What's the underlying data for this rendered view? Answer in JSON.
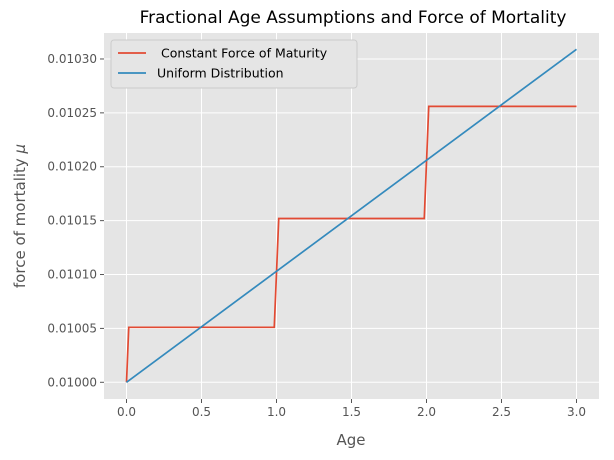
{
  "chart_data": {
    "type": "line",
    "title": "Fractional Age Assumptions and Force of Mortality",
    "xlabel": "Age",
    "ylabel_prefix": "force of mortality ",
    "ylabel_symbol": "μ",
    "xlim": [
      -0.15,
      3.15
    ],
    "ylim": [
      0.0099845,
      0.0103241
    ],
    "xticks": [
      0.0,
      0.5,
      1.0,
      1.5,
      2.0,
      2.5,
      3.0
    ],
    "xtick_labels": [
      "0.0",
      "0.5",
      "1.0",
      "1.5",
      "2.0",
      "2.5",
      "3.0"
    ],
    "yticks": [
      0.01,
      0.01005,
      0.0101,
      0.01015,
      0.0102,
      0.01025,
      0.0103
    ],
    "ytick_labels": [
      "0.01000",
      "0.01005",
      "0.01010",
      "0.01015",
      "0.01020",
      "0.01025",
      "0.01030"
    ],
    "grid": true,
    "legend_position": "top-left",
    "series": [
      {
        "name": " Constant Force of Maturity",
        "color": "#E24A33",
        "x": [
          0.0,
          0.015,
          0.985,
          1.015,
          1.985,
          2.015,
          3.0
        ],
        "y": [
          0.01,
          0.010051,
          0.010051,
          0.010152,
          0.010152,
          0.010256,
          0.010256
        ]
      },
      {
        "name": "Uniform Distribution",
        "color": "#348ABD",
        "x": [
          0.0,
          3.0
        ],
        "y": [
          0.01,
          0.010309
        ]
      }
    ]
  }
}
